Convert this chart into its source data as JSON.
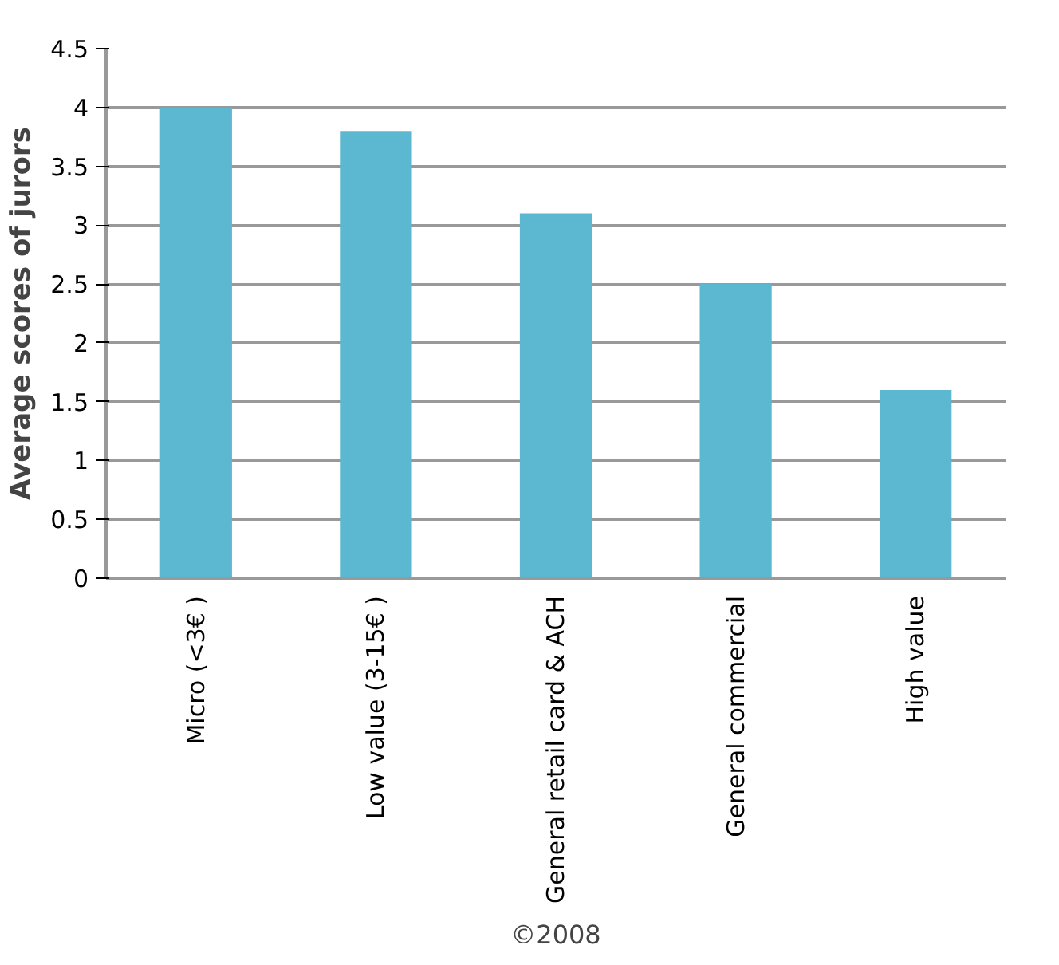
{
  "chart_data": {
    "type": "bar",
    "ylabel": "Average scores of jurors",
    "categories": [
      "Micro (<3€ )",
      "Low value (3-15€ )",
      "General retail card & ACH",
      "General commercial",
      "High value"
    ],
    "values": [
      4,
      3.8,
      3.1,
      2.5,
      1.6
    ],
    "color": "#5bb8d0",
    "ylim": [
      0,
      4.5
    ],
    "yticks": [
      0,
      0.5,
      1,
      1.5,
      2,
      2.5,
      3,
      3.5,
      4,
      4.5
    ],
    "grid": "y",
    "annotations": [
      "©2008"
    ]
  }
}
